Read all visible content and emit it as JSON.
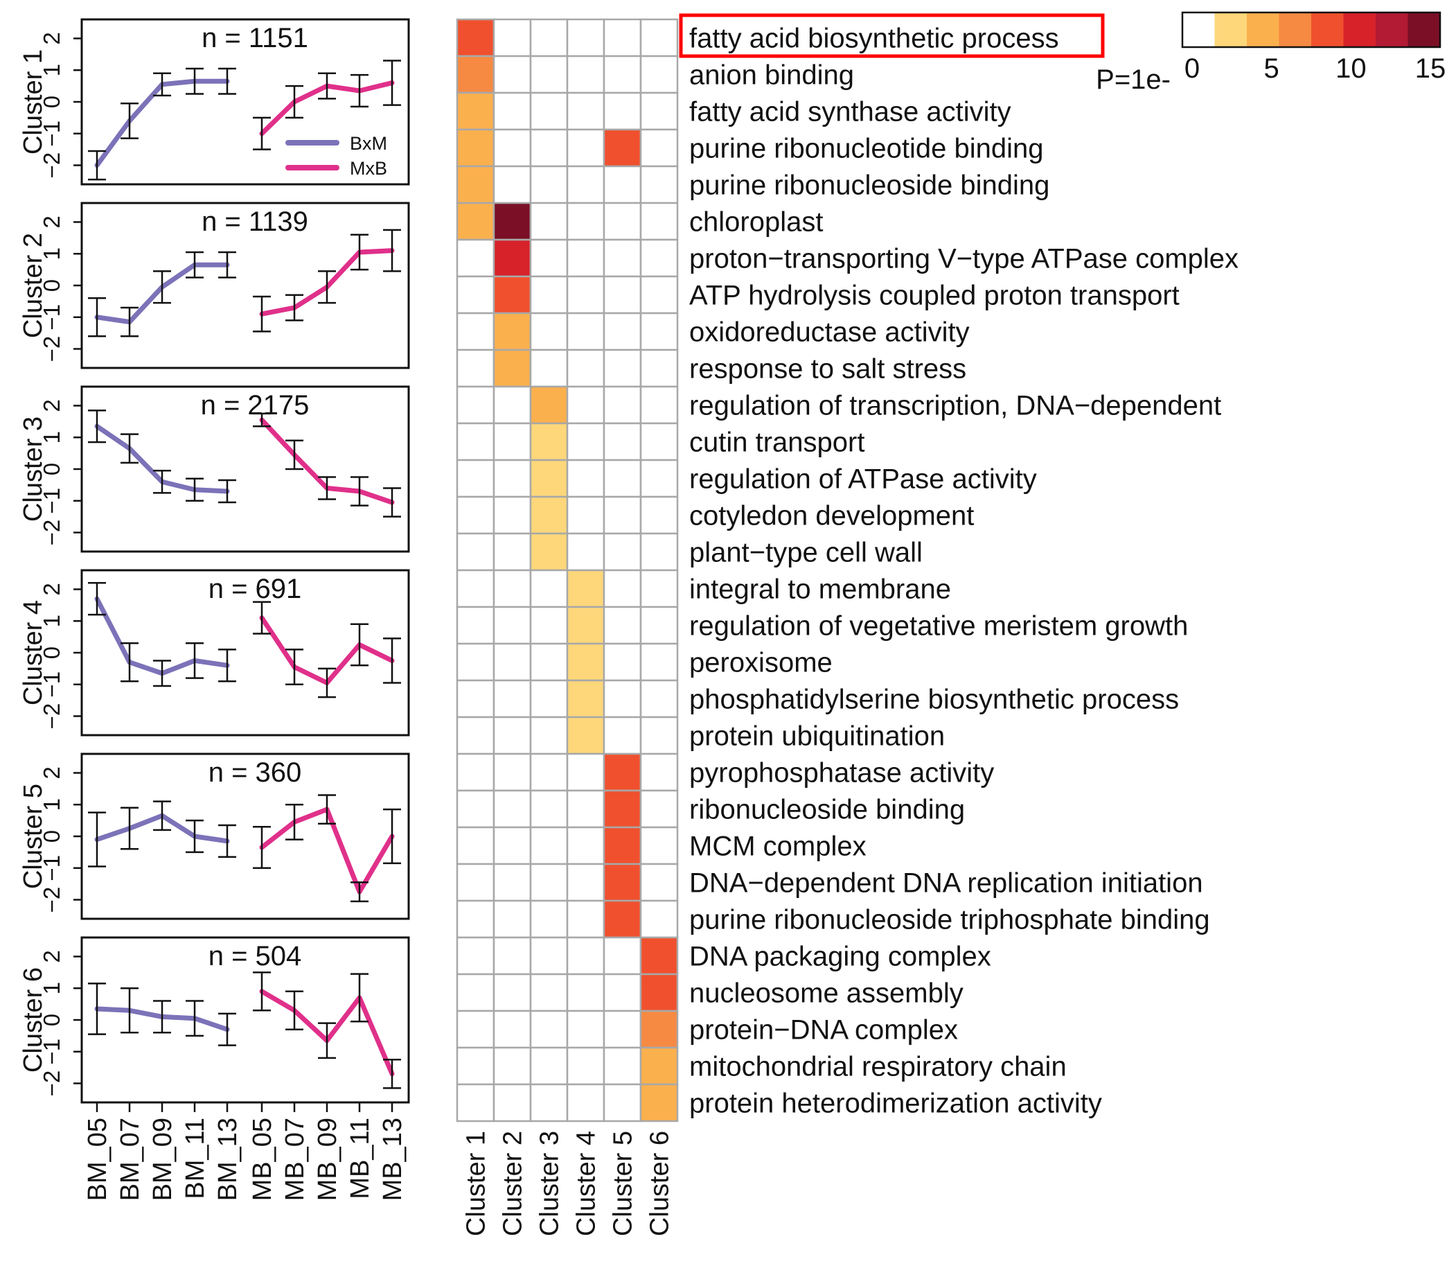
{
  "chart_data": {
    "left": {
      "type": "line",
      "x_labels": [
        "BM_05",
        "BM_07",
        "BM_09",
        "BM_11",
        "BM_13",
        "MB_05",
        "MB_07",
        "MB_09",
        "MB_11",
        "MB_13"
      ],
      "ylim": [
        -2.6,
        2.6
      ],
      "yticks": [
        -2,
        -1,
        0,
        1,
        2
      ],
      "legend": [
        {
          "name": "BxM",
          "color": "#7b72b8"
        },
        {
          "name": "MxB",
          "color": "#e0308a"
        }
      ],
      "legend_position": "bottom-right of Cluster 1 panel",
      "clusters": [
        {
          "label": "Cluster 1",
          "n_text": "n = 1151",
          "bxm": [
            -2.0,
            -0.6,
            0.55,
            0.65,
            0.65
          ],
          "bxm_err": [
            0.45,
            0.55,
            0.35,
            0.4,
            0.4
          ],
          "mxb": [
            -1.0,
            0.0,
            0.5,
            0.35,
            0.6
          ],
          "mxb_err": [
            0.5,
            0.5,
            0.4,
            0.5,
            0.7
          ]
        },
        {
          "label": "Cluster 2",
          "n_text": "n = 1139",
          "bxm": [
            -1.0,
            -1.15,
            -0.05,
            0.65,
            0.65
          ],
          "bxm_err": [
            0.6,
            0.45,
            0.5,
            0.4,
            0.4
          ],
          "mxb": [
            -0.9,
            -0.7,
            -0.05,
            1.05,
            1.1
          ],
          "mxb_err": [
            0.55,
            0.4,
            0.5,
            0.55,
            0.65
          ]
        },
        {
          "label": "Cluster 3",
          "n_text": "n = 2175",
          "bxm": [
            1.35,
            0.65,
            -0.4,
            -0.65,
            -0.7
          ],
          "bxm_err": [
            0.5,
            0.45,
            0.35,
            0.35,
            0.35
          ],
          "mxb": [
            1.55,
            0.45,
            -0.6,
            -0.7,
            -1.05
          ],
          "mxb_err": [
            0.2,
            0.45,
            0.35,
            0.45,
            0.45
          ]
        },
        {
          "label": "Cluster 4",
          "n_text": "n = 691",
          "bxm": [
            1.7,
            -0.3,
            -0.65,
            -0.25,
            -0.4
          ],
          "bxm_err": [
            0.5,
            0.6,
            0.4,
            0.55,
            0.5
          ],
          "mxb": [
            1.1,
            -0.45,
            -0.95,
            0.25,
            -0.25
          ],
          "mxb_err": [
            0.5,
            0.55,
            0.45,
            0.65,
            0.7
          ]
        },
        {
          "label": "Cluster 5",
          "n_text": "n = 360",
          "bxm": [
            -0.1,
            0.25,
            0.65,
            0.0,
            -0.15
          ],
          "bxm_err": [
            0.85,
            0.65,
            0.45,
            0.5,
            0.5
          ],
          "mxb": [
            -0.35,
            0.45,
            0.85,
            -1.75,
            0.0
          ],
          "mxb_err": [
            0.65,
            0.55,
            0.45,
            0.3,
            0.85
          ]
        },
        {
          "label": "Cluster 6",
          "n_text": "n = 504",
          "bxm": [
            0.35,
            0.3,
            0.1,
            0.05,
            -0.3
          ],
          "bxm_err": [
            0.8,
            0.7,
            0.5,
            0.55,
            0.5
          ],
          "mxb": [
            0.9,
            0.3,
            -0.65,
            0.7,
            -1.7
          ],
          "mxb_err": [
            0.6,
            0.6,
            0.55,
            0.75,
            0.45
          ]
        }
      ]
    },
    "heatmap": {
      "type": "heatmap",
      "columns": [
        "Cluster 1",
        "Cluster 2",
        "Cluster 3",
        "Cluster 4",
        "Cluster 5",
        "Cluster 6"
      ],
      "rows": [
        "fatty acid biosynthetic process",
        "anion binding",
        "fatty acid synthase activity",
        "purine ribonucleotide binding",
        "purine ribonucleoside binding",
        "chloroplast",
        "proton−transporting V−type ATPase complex",
        "ATP hydrolysis coupled proton transport",
        "oxidoreductase activity",
        "response to salt stress",
        "regulation of transcription, DNA−dependent",
        "cutin transport",
        "regulation of ATPase activity",
        "cotyledon development",
        "plant−type cell wall",
        "integral to membrane",
        "regulation of vegetative meristem growth",
        "peroxisome",
        "phosphatidylserine biosynthetic process",
        "protein ubiquitination",
        "pyrophosphatase activity",
        "ribonucleoside binding",
        "MCM complex",
        "DNA−dependent DNA replication initiation",
        "purine ribonucleoside triphosphate binding",
        "DNA packaging complex",
        "nucleosome assembly",
        "protein−DNA complex",
        "mitochondrial respiratory chain",
        "protein heterodimerization activity"
      ],
      "highlighted_row": "fatty acid biosynthetic process",
      "cells": [
        {
          "row": 0,
          "col": 0,
          "value": 8
        },
        {
          "row": 1,
          "col": 0,
          "value": 6
        },
        {
          "row": 2,
          "col": 0,
          "value": 4
        },
        {
          "row": 3,
          "col": 0,
          "value": 4
        },
        {
          "row": 4,
          "col": 0,
          "value": 4
        },
        {
          "row": 5,
          "col": 0,
          "value": 4
        },
        {
          "row": 3,
          "col": 4,
          "value": 8
        },
        {
          "row": 5,
          "col": 1,
          "value": 16
        },
        {
          "row": 6,
          "col": 1,
          "value": 12
        },
        {
          "row": 7,
          "col": 1,
          "value": 10
        },
        {
          "row": 8,
          "col": 1,
          "value": 4
        },
        {
          "row": 9,
          "col": 1,
          "value": 4
        },
        {
          "row": 10,
          "col": 2,
          "value": 4
        },
        {
          "row": 11,
          "col": 2,
          "value": 2
        },
        {
          "row": 12,
          "col": 2,
          "value": 2
        },
        {
          "row": 13,
          "col": 2,
          "value": 2
        },
        {
          "row": 14,
          "col": 2,
          "value": 2
        },
        {
          "row": 15,
          "col": 3,
          "value": 2
        },
        {
          "row": 16,
          "col": 3,
          "value": 2
        },
        {
          "row": 17,
          "col": 3,
          "value": 2
        },
        {
          "row": 18,
          "col": 3,
          "value": 2
        },
        {
          "row": 19,
          "col": 3,
          "value": 2
        },
        {
          "row": 20,
          "col": 4,
          "value": 10
        },
        {
          "row": 21,
          "col": 4,
          "value": 8
        },
        {
          "row": 22,
          "col": 4,
          "value": 8
        },
        {
          "row": 23,
          "col": 4,
          "value": 8
        },
        {
          "row": 24,
          "col": 4,
          "value": 8
        },
        {
          "row": 25,
          "col": 5,
          "value": 8
        },
        {
          "row": 26,
          "col": 5,
          "value": 8
        },
        {
          "row": 27,
          "col": 5,
          "value": 6
        },
        {
          "row": 28,
          "col": 5,
          "value": 4
        },
        {
          "row": 29,
          "col": 5,
          "value": 4
        }
      ],
      "colorbar": {
        "colors": [
          "#ffffff",
          "#fdd77a",
          "#fbb04e",
          "#f68a43",
          "#f0502e",
          "#d7222a",
          "#b31a33",
          "#7a0f25"
        ],
        "ticks": [
          0,
          5,
          10,
          15
        ],
        "label": "P=1e-"
      }
    }
  }
}
